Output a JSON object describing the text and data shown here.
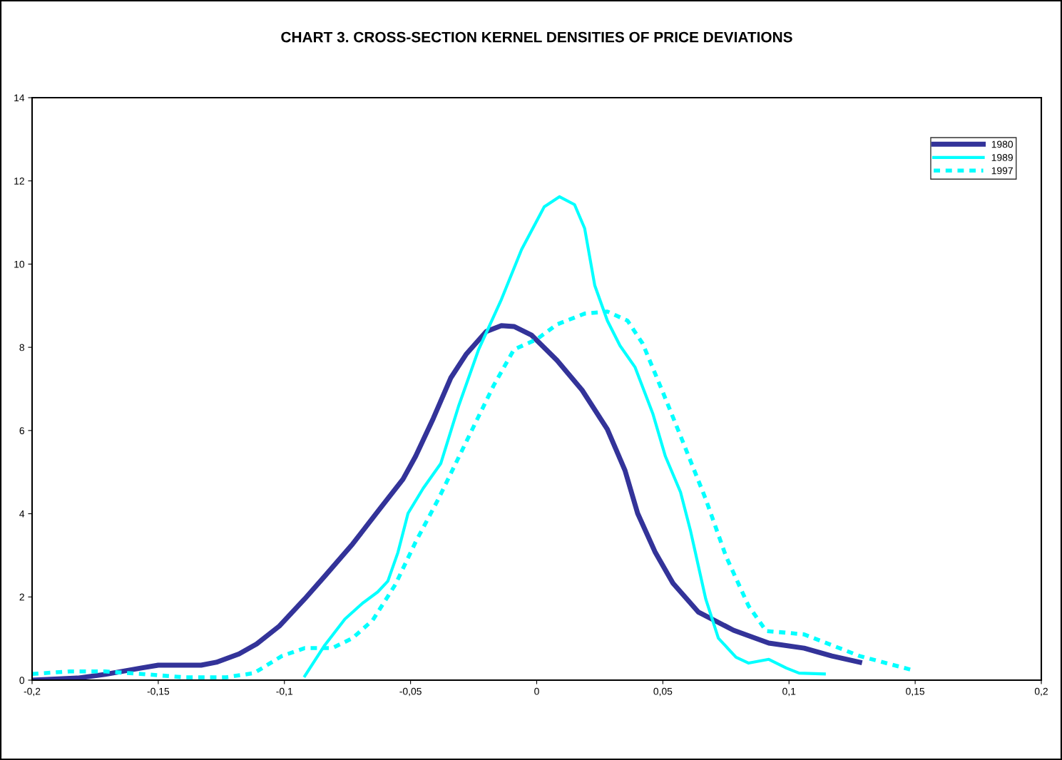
{
  "chart_data": {
    "type": "line",
    "title": "CHART 3. CROSS-SECTION KERNEL DENSITIES OF PRICE DEVIATIONS",
    "xlim": [
      -0.2,
      0.2
    ],
    "ylim": [
      0,
      14
    ],
    "xticks": [
      {
        "value": -0.2,
        "label": "-0,2"
      },
      {
        "value": -0.15,
        "label": "-0,15"
      },
      {
        "value": -0.1,
        "label": "-0,1"
      },
      {
        "value": -0.05,
        "label": "-0,05"
      },
      0,
      {
        "value": 0.05,
        "label": "0,05"
      },
      {
        "value": 0.1,
        "label": "0,1"
      },
      {
        "value": 0.15,
        "label": "0,15"
      },
      {
        "value": 0.2,
        "label": "0,2"
      }
    ],
    "yticks": [
      0,
      2,
      4,
      6,
      8,
      10,
      12,
      14
    ],
    "grid": false,
    "legend": "top right",
    "marker": "none",
    "series": [
      {
        "name": "1980",
        "color": "#333399",
        "line_style": "solid",
        "x": [
          -0.2,
          -0.182,
          -0.171,
          -0.157,
          -0.15,
          -0.144,
          -0.133,
          -0.127,
          -0.118,
          -0.111,
          -0.102,
          -0.092,
          -0.084,
          -0.073,
          -0.062,
          -0.053,
          -0.048,
          -0.041,
          -0.034,
          -0.028,
          -0.02,
          -0.014,
          -0.009,
          -0.002,
          0.008,
          0.018,
          0.028,
          0.035,
          0.04,
          0.047,
          0.054,
          0.064,
          0.078,
          0.092,
          0.106,
          0.117,
          0.128
        ],
        "values": [
          0,
          0.05,
          0.14,
          0.29,
          0.36,
          0.36,
          0.36,
          0.43,
          0.63,
          0.87,
          1.3,
          1.95,
          2.5,
          3.27,
          4.13,
          4.83,
          5.38,
          6.29,
          7.27,
          7.83,
          8.38,
          8.52,
          8.5,
          8.29,
          7.69,
          6.97,
          6.03,
          5.04,
          4.01,
          3.07,
          2.33,
          1.64,
          1.2,
          0.89,
          0.77,
          0.58,
          0.43
        ]
      },
      {
        "name": "1989",
        "color": "#00ffff",
        "line_style": "solid",
        "x": [
          -0.0919,
          -0.084,
          -0.076,
          -0.069,
          -0.063,
          -0.059,
          -0.055,
          -0.051,
          -0.045,
          -0.038,
          -0.031,
          -0.023,
          -0.014,
          -0.006,
          0.003,
          0.009,
          0.015,
          0.019,
          0.023,
          0.028,
          0.033,
          0.039,
          0.046,
          0.051,
          0.057,
          0.061,
          0.067,
          0.072,
          0.079,
          0.084,
          0.092,
          0.099,
          0.104,
          0.114
        ],
        "values": [
          0.1,
          0.84,
          1.47,
          1.85,
          2.12,
          2.38,
          3.07,
          4.01,
          4.61,
          5.21,
          6.58,
          7.95,
          9.15,
          10.35,
          11.38,
          11.62,
          11.43,
          10.86,
          9.49,
          8.64,
          8.04,
          7.52,
          6.41,
          5.38,
          4.52,
          3.58,
          1.95,
          1.01,
          0.55,
          0.41,
          0.5,
          0.29,
          0.17,
          0.15
        ]
      },
      {
        "name": "1997",
        "color": "#00ffff",
        "line_style": "dashed",
        "x": [
          -0.2,
          -0.185,
          -0.171,
          -0.157,
          -0.14,
          -0.123,
          -0.112,
          -0.101,
          -0.092,
          -0.081,
          -0.073,
          -0.065,
          -0.056,
          -0.048,
          -0.039,
          -0.028,
          -0.017,
          -0.009,
          0.0,
          0.008,
          0.019,
          0.028,
          0.036,
          0.042,
          0.05,
          0.058,
          0.067,
          0.075,
          0.084,
          0.091,
          0.097,
          0.106,
          0.117,
          0.128,
          0.149
        ],
        "values": [
          0.15,
          0.21,
          0.21,
          0.15,
          0.07,
          0.07,
          0.17,
          0.58,
          0.77,
          0.77,
          1.01,
          1.44,
          2.3,
          3.32,
          4.35,
          5.72,
          7.09,
          7.95,
          8.19,
          8.55,
          8.81,
          8.86,
          8.64,
          8.09,
          6.92,
          5.72,
          4.35,
          2.98,
          1.78,
          1.18,
          1.15,
          1.1,
          0.84,
          0.58,
          0.24
        ]
      }
    ]
  }
}
